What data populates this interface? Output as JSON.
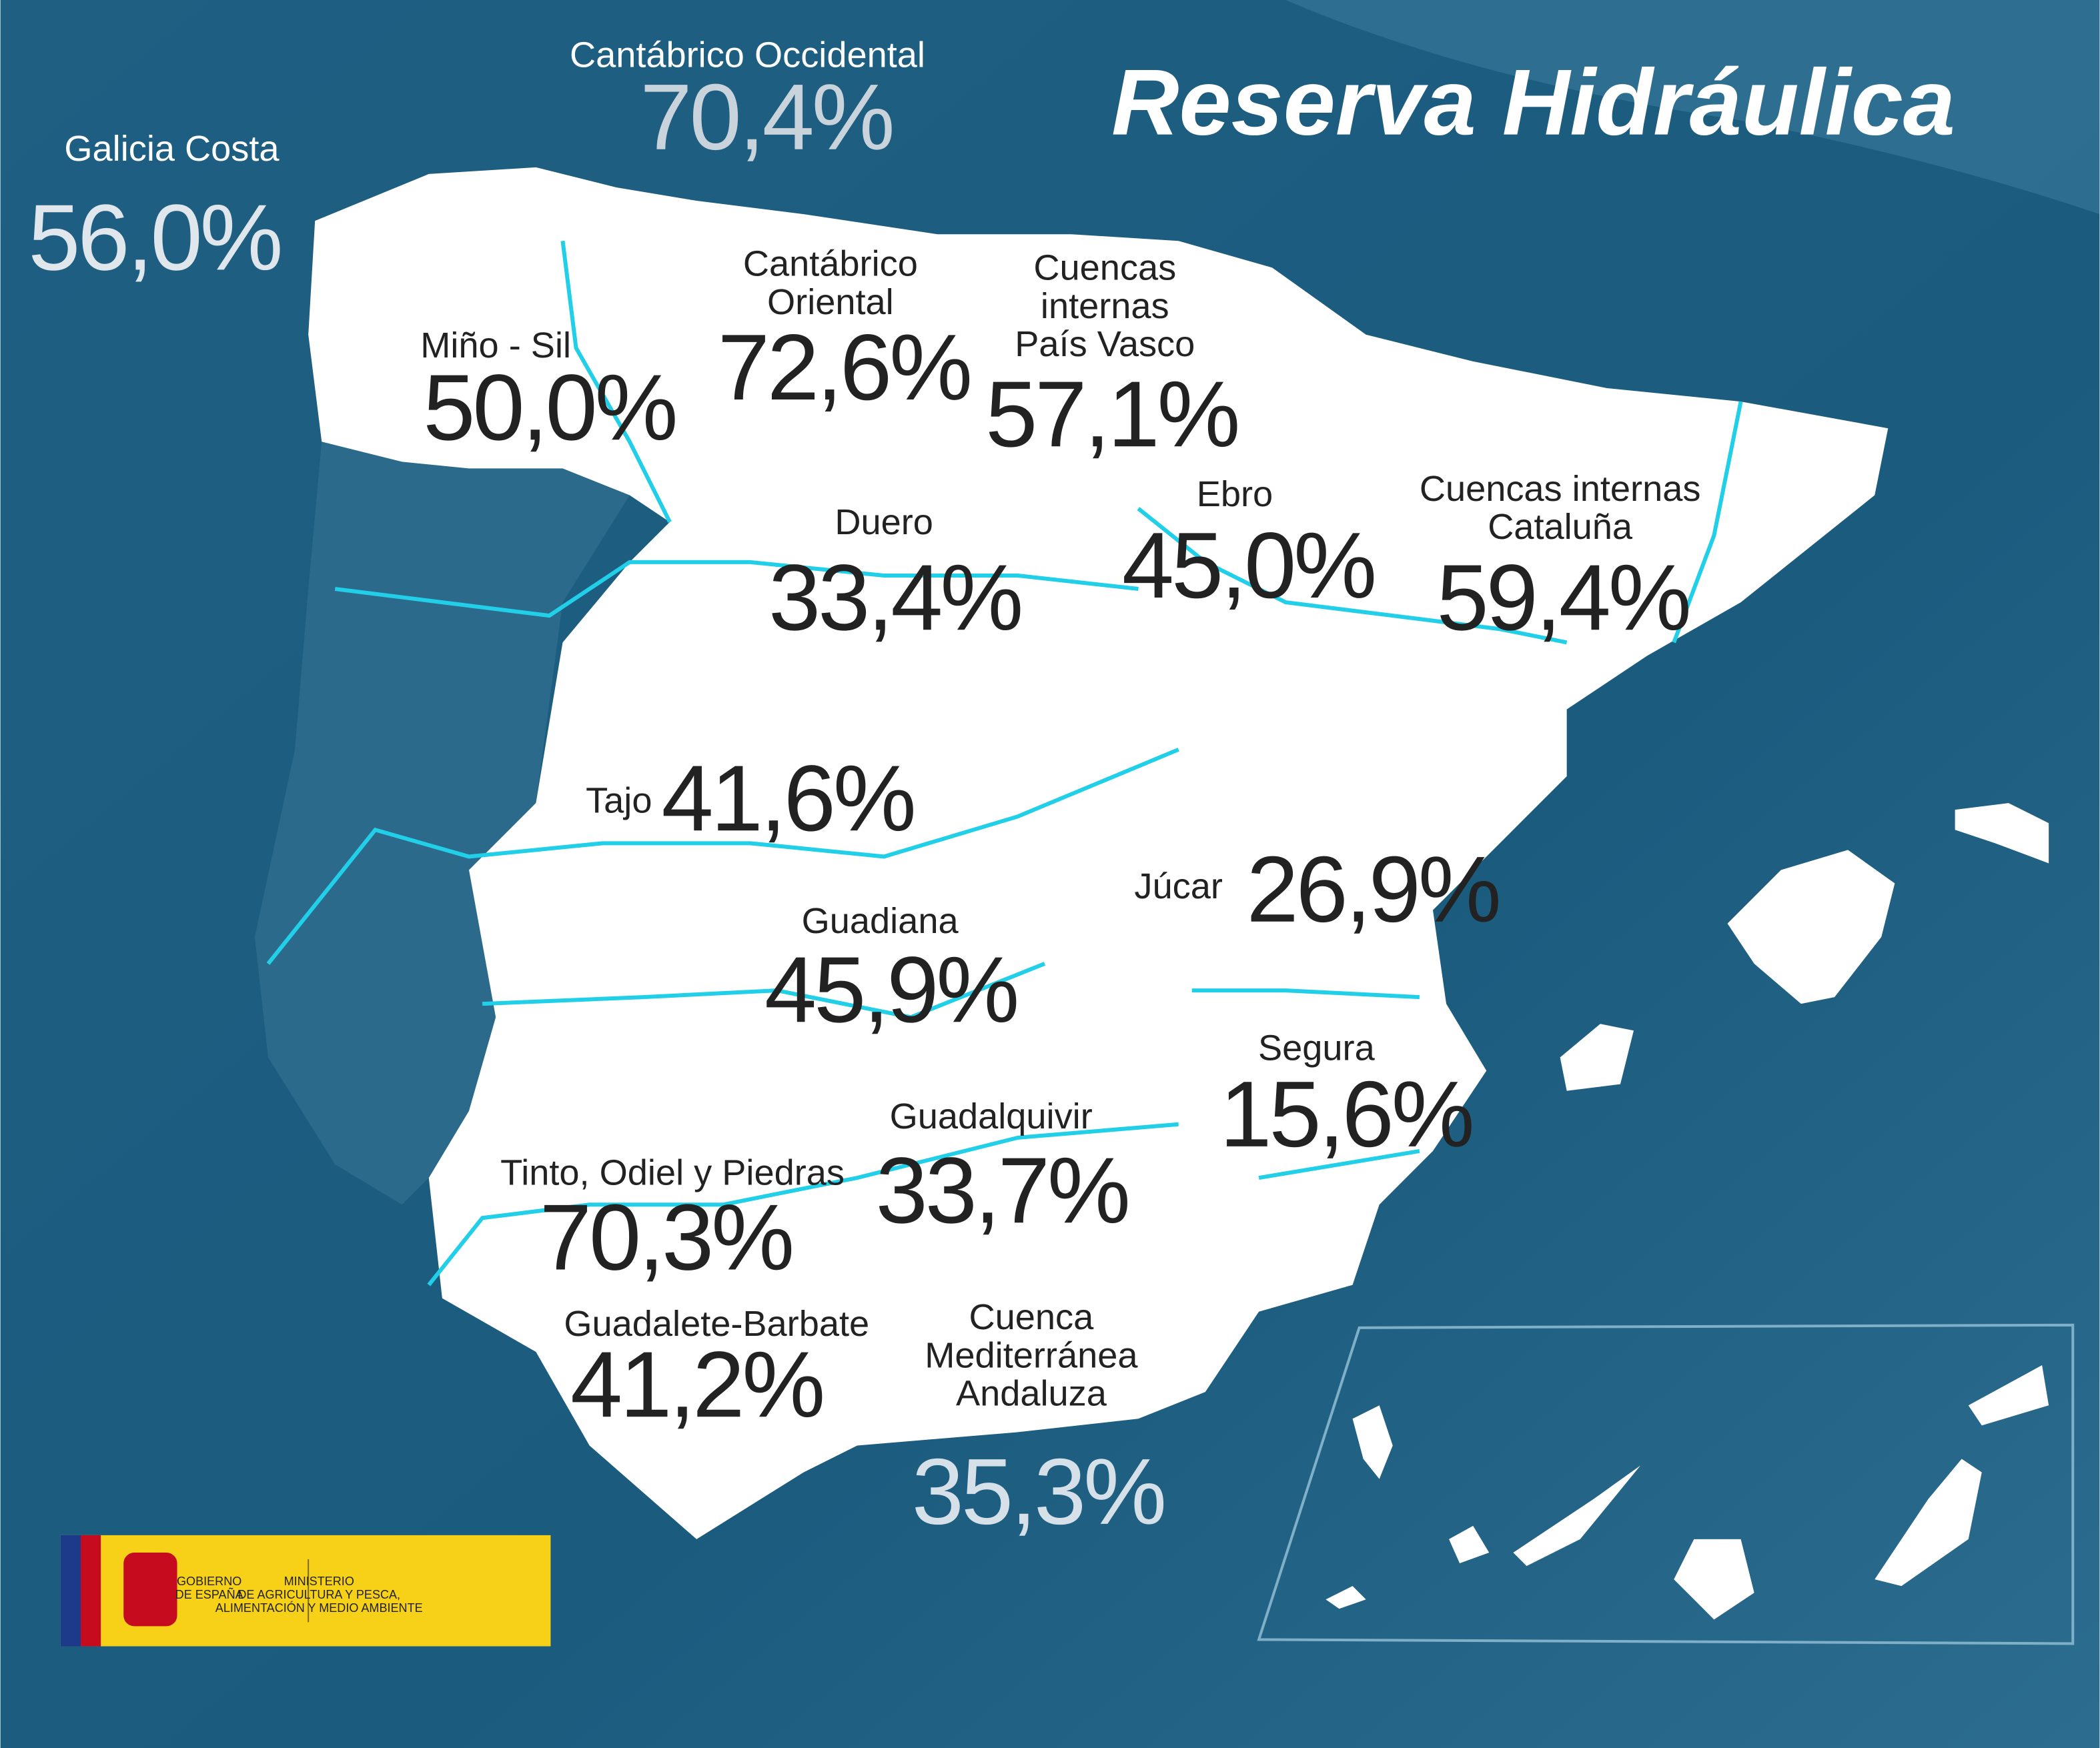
{
  "title": "Reserva Hidráulica",
  "basins": [
    {
      "name": [
        "Galicia Costa"
      ],
      "value": "56,0%"
    },
    {
      "name": [
        "Cantábrico Occidental"
      ],
      "value": "70,4%"
    },
    {
      "name": [
        "Miño - Sil"
      ],
      "value": "50,0%"
    },
    {
      "name": [
        "Cantábrico",
        "Oriental"
      ],
      "value": "72,6%"
    },
    {
      "name": [
        "Cuencas",
        "internas",
        "País Vasco"
      ],
      "value": "57,1%"
    },
    {
      "name": [
        "Duero"
      ],
      "value": "33,4%"
    },
    {
      "name": [
        "Ebro"
      ],
      "value": "45,0%"
    },
    {
      "name": [
        "Cuencas internas",
        "Cataluña"
      ],
      "value": "59,4%"
    },
    {
      "name": [
        "Tajo"
      ],
      "value": "41,6%"
    },
    {
      "name": [
        "Júcar"
      ],
      "value": "26,9%"
    },
    {
      "name": [
        "Guadiana"
      ],
      "value": "45,9%"
    },
    {
      "name": [
        "Segura"
      ],
      "value": "15,6%"
    },
    {
      "name": [
        "Guadalquivir"
      ],
      "value": "33,7%"
    },
    {
      "name": [
        "Tinto, Odiel y Piedras"
      ],
      "value": "70,3%"
    },
    {
      "name": [
        "Guadalete-Barbate"
      ],
      "value": "41,2%"
    },
    {
      "name": [
        "Cuenca",
        "Mediterránea",
        "Andaluza"
      ],
      "value": "35,3%"
    }
  ],
  "logo": {
    "government": [
      "GOBIERNO",
      "DE ESPAÑA"
    ],
    "ministry": [
      "MINISTERIO",
      "DE AGRICULTURA Y PESCA,",
      "ALIMENTACIÓN Y MEDIO AMBIENTE"
    ]
  }
}
